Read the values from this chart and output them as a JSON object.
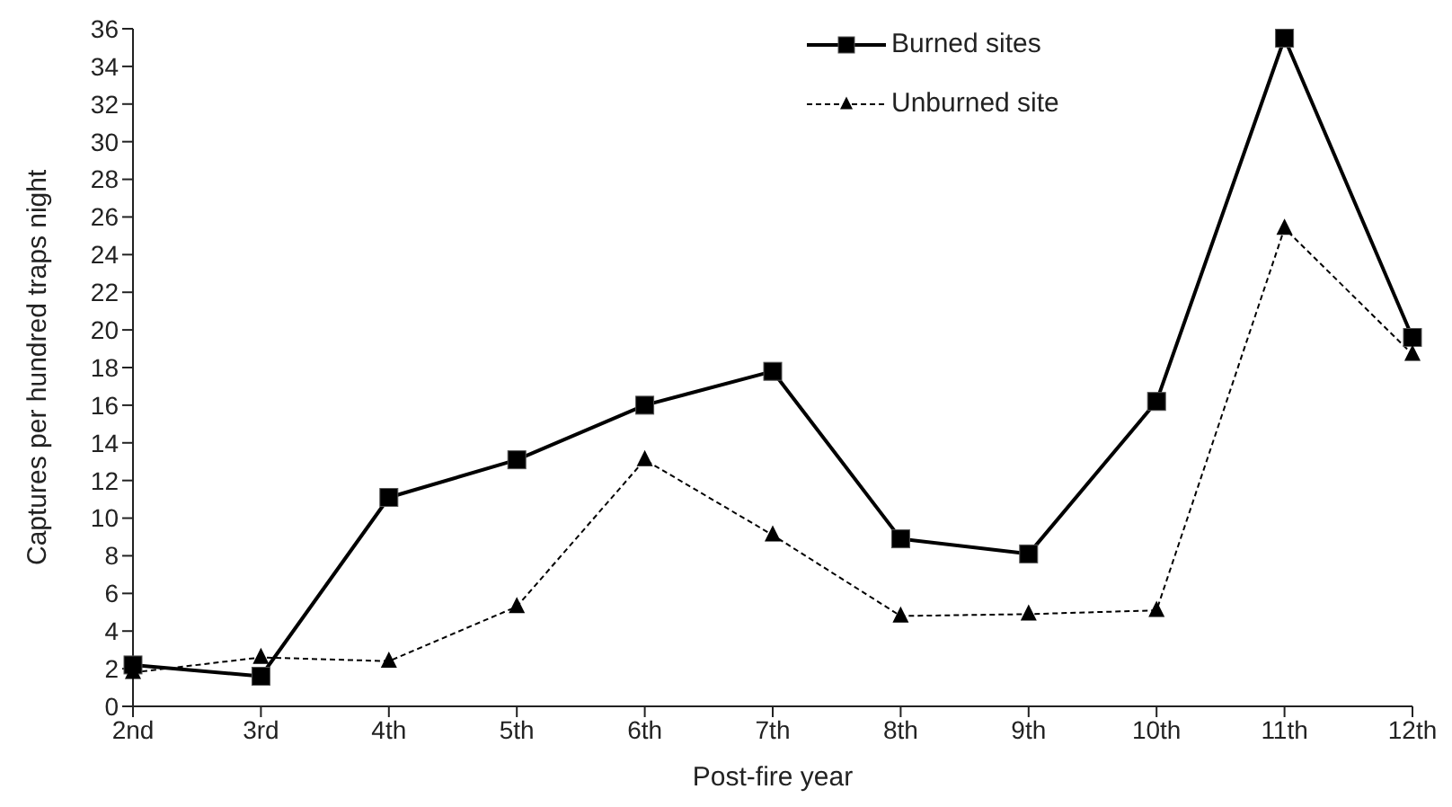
{
  "chart_data": {
    "type": "line",
    "xlabel": "Post-fire year",
    "ylabel": "Captures per hundred traps night",
    "categories": [
      "2nd",
      "3rd",
      "4th",
      "5th",
      "6th",
      "7th",
      "8th",
      "9th",
      "10th",
      "11th",
      "12th"
    ],
    "series": [
      {
        "name": "Burned sites",
        "color": "#000000",
        "marker": "square",
        "line_style": "solid",
        "values": [
          2.2,
          1.6,
          11.1,
          13.1,
          16.0,
          17.8,
          8.9,
          8.1,
          16.2,
          35.5,
          19.6
        ]
      },
      {
        "name": "Unburned site",
        "color": "#000000",
        "marker": "triangle",
        "line_style": "dashed",
        "values": [
          1.8,
          2.6,
          2.4,
          5.3,
          13.1,
          9.1,
          4.8,
          4.9,
          5.1,
          25.4,
          18.7
        ]
      }
    ],
    "ylim": [
      0,
      36
    ],
    "yticks": [
      0,
      2,
      4,
      6,
      8,
      10,
      12,
      14,
      16,
      18,
      20,
      22,
      24,
      26,
      28,
      30,
      32,
      34,
      36
    ],
    "grid": false,
    "legend": "top"
  }
}
